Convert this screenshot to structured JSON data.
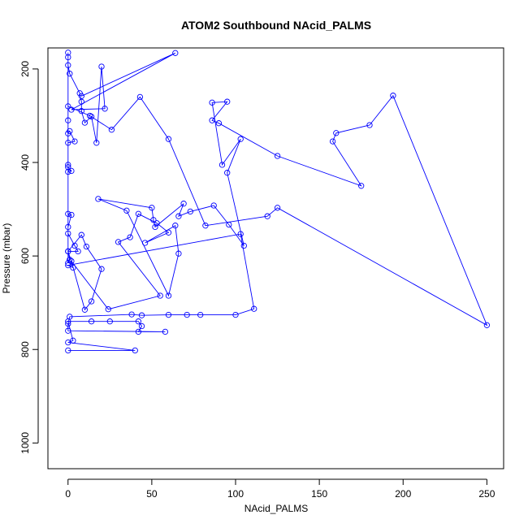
{
  "chart_data": {
    "type": "scatter",
    "title": "ATOM2 Southbound NAcid_PALMS",
    "xlabel": "NAcid_PALMS",
    "ylabel": "Pressure (mbar)",
    "xlim": [
      -12,
      260
    ],
    "ylim": [
      1055,
      155
    ],
    "y_reversed": true,
    "xticks": [
      0,
      50,
      100,
      150,
      200,
      250
    ],
    "yticks": [
      200,
      400,
      600,
      800,
      1000
    ],
    "series_color": "#0000ff",
    "marker": "open-circle",
    "connected": true,
    "series": [
      {
        "values": [
          [
            0,
            802
          ],
          [
            40,
            802
          ],
          [
            0,
            785
          ],
          [
            3,
            781
          ],
          [
            0,
            740
          ],
          [
            14,
            740
          ],
          [
            25,
            740
          ],
          [
            42,
            740
          ],
          [
            44,
            750
          ],
          [
            42,
            762
          ],
          [
            58,
            762
          ],
          [
            0,
            760
          ],
          [
            0,
            745
          ],
          [
            1,
            730
          ],
          [
            38,
            725
          ],
          [
            44,
            727
          ],
          [
            60,
            726
          ],
          [
            71,
            726
          ],
          [
            79,
            726
          ],
          [
            100,
            726
          ],
          [
            111,
            713
          ],
          [
            103,
            553
          ],
          [
            0,
            620
          ],
          [
            3,
            625
          ],
          [
            0,
            590
          ],
          [
            8,
            555
          ],
          [
            11,
            580
          ],
          [
            20,
            628
          ],
          [
            14,
            697
          ],
          [
            10,
            715
          ],
          [
            2,
            611
          ],
          [
            24,
            714
          ],
          [
            55,
            685
          ],
          [
            30,
            570
          ],
          [
            37,
            560
          ],
          [
            42,
            510
          ],
          [
            53,
            530
          ],
          [
            60,
            550
          ],
          [
            46,
            572
          ],
          [
            64,
            535
          ],
          [
            66,
            595
          ],
          [
            60,
            685
          ],
          [
            35,
            503
          ],
          [
            18,
            478
          ],
          [
            50,
            497
          ],
          [
            51,
            523
          ],
          [
            52,
            538
          ],
          [
            69,
            488
          ],
          [
            66,
            515
          ],
          [
            73,
            505
          ],
          [
            87,
            492
          ],
          [
            96,
            533
          ],
          [
            105,
            578
          ],
          [
            95,
            422
          ],
          [
            103,
            350
          ],
          [
            92,
            405
          ],
          [
            86,
            272
          ],
          [
            95,
            270
          ],
          [
            86,
            310
          ],
          [
            90,
            316
          ],
          [
            125,
            386
          ],
          [
            175,
            450
          ],
          [
            158,
            355
          ],
          [
            160,
            337
          ],
          [
            180,
            320
          ],
          [
            194,
            257
          ],
          [
            250,
            748
          ],
          [
            125,
            497
          ],
          [
            119,
            515
          ],
          [
            82,
            535
          ],
          [
            60,
            350
          ],
          [
            43,
            260
          ],
          [
            26,
            330
          ],
          [
            13,
            300
          ],
          [
            0,
            280
          ],
          [
            0,
            310
          ],
          [
            0,
            338
          ],
          [
            1,
            333
          ],
          [
            4,
            355
          ],
          [
            0,
            358
          ],
          [
            0,
            405
          ],
          [
            0,
            410
          ],
          [
            2,
            418
          ],
          [
            0,
            420
          ],
          [
            0,
            510
          ],
          [
            2,
            512
          ],
          [
            0,
            538
          ],
          [
            0,
            552
          ],
          [
            4,
            578
          ],
          [
            6,
            590
          ],
          [
            0,
            590
          ],
          [
            1,
            608
          ],
          [
            0,
            615
          ],
          [
            0,
            175
          ],
          [
            0,
            165
          ],
          [
            0,
            192
          ],
          [
            1,
            210
          ],
          [
            7,
            252
          ],
          [
            8,
            270
          ],
          [
            8,
            290
          ],
          [
            10,
            315
          ],
          [
            14,
            302
          ],
          [
            17,
            358
          ],
          [
            20,
            195
          ],
          [
            22,
            285
          ],
          [
            2,
            287
          ],
          [
            64,
            166
          ],
          [
            8,
            258
          ]
        ]
      }
    ]
  }
}
